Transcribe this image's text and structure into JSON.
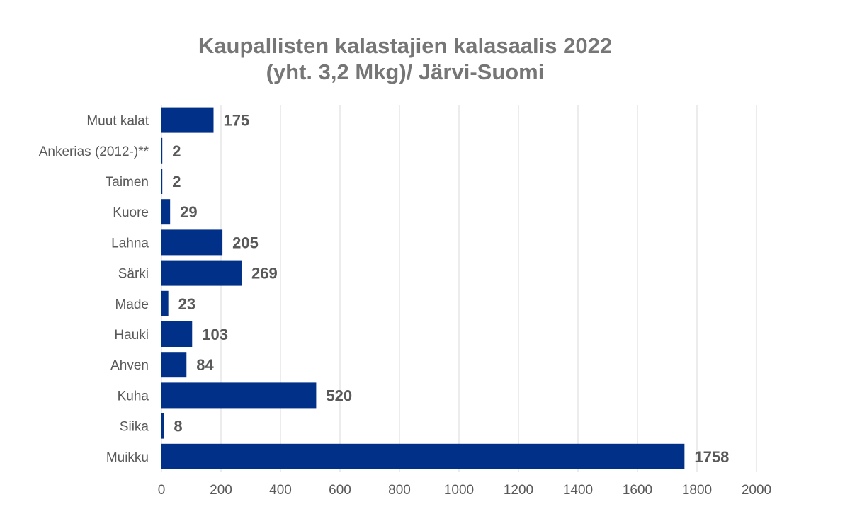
{
  "chart_data": {
    "type": "bar",
    "orientation": "horizontal",
    "title_line1": "Kaupallisten kalastajien kalasaalis 2022",
    "title_line2": "(yht. 3,2 Mkg)/ Järvi-Suomi",
    "categories": [
      "Muut kalat",
      "Ankerias (2012-)**",
      "Taimen",
      "Kuore",
      "Lahna",
      "Särki",
      "Made",
      "Hauki",
      "Ahven",
      "Kuha",
      "Siika",
      "Muikku"
    ],
    "values": [
      175,
      2,
      2,
      29,
      205,
      269,
      23,
      103,
      84,
      520,
      8,
      1758
    ],
    "data_labels": [
      "175",
      "2",
      "2",
      "29",
      "205",
      "269",
      "23",
      "103",
      "84",
      "520",
      "8",
      "1758"
    ],
    "xlim": [
      0,
      2000
    ],
    "x_ticks": [
      0,
      200,
      400,
      600,
      800,
      1000,
      1200,
      1400,
      1600,
      1800,
      2000
    ],
    "x_tick_labels": [
      "0",
      "200",
      "400",
      "600",
      "800",
      "1000",
      "1200",
      "1400",
      "1600",
      "1800",
      "2000"
    ],
    "xlabel": "",
    "ylabel": "",
    "grid": true,
    "legend": false,
    "bar_color": "#003087",
    "grid_color": "#d9d9d9",
    "text_color": "#595959",
    "title_color": "#767676"
  }
}
